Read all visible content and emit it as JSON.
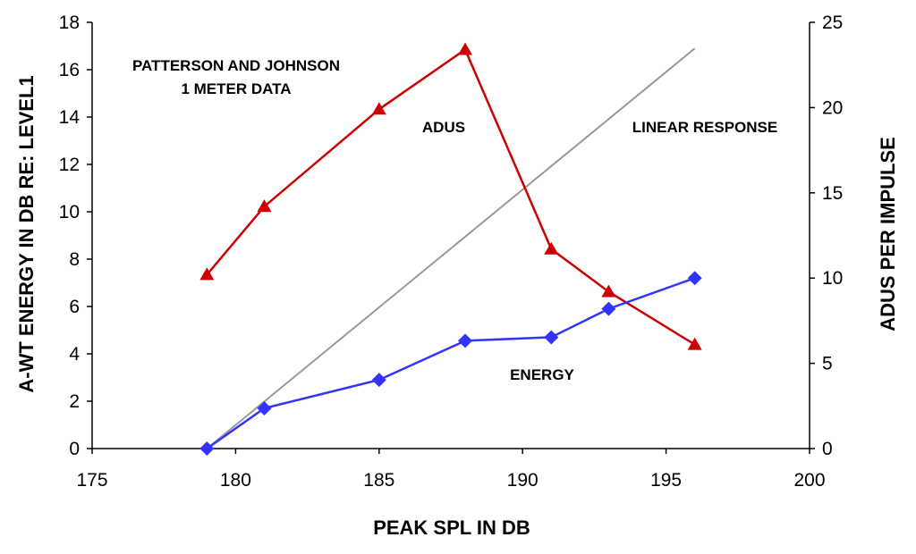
{
  "chart_data": {
    "type": "line",
    "xlabel": "PEAK SPL IN DB",
    "ylabel_left": "A-WT ENERGY IN DB RE: LEVEL1",
    "ylabel_right": "ADUS PER IMPULSE",
    "xlim": [
      175,
      200
    ],
    "ylim_left": [
      0,
      18
    ],
    "ylim_right": [
      0,
      25
    ],
    "x_ticks": [
      "175",
      "180",
      "185",
      "190",
      "195",
      "200"
    ],
    "y_left_ticks": [
      "0",
      "2",
      "4",
      "6",
      "8",
      "10",
      "12",
      "14",
      "16",
      "18"
    ],
    "y_right_ticks": [
      "0",
      "5",
      "10",
      "15",
      "20",
      "25"
    ],
    "grid": false,
    "series": [
      {
        "key": "adus",
        "axis": "right",
        "color": "#cc0000",
        "marker": "triangle",
        "x": [
          179,
          181,
          185,
          188,
          191,
          193,
          196
        ],
        "y": [
          10.2,
          14.2,
          19.9,
          23.4,
          11.7,
          9.2,
          6.1
        ]
      },
      {
        "key": "energy",
        "axis": "left",
        "color": "#3333ff",
        "marker": "diamond",
        "x": [
          179,
          181,
          185,
          188,
          191,
          193,
          196
        ],
        "y": [
          0,
          1.7,
          2.9,
          4.55,
          4.7,
          5.9,
          7.2
        ]
      },
      {
        "key": "linear",
        "axis": "left",
        "color": "#999999",
        "marker": "none",
        "x": [
          179,
          196
        ],
        "y": [
          0,
          16.9
        ]
      }
    ],
    "annotations": {
      "source_line1": "PATTERSON AND JOHNSON",
      "source_line2": "1 METER DATA",
      "adus": "ADUS",
      "linear": "LINEAR RESPONSE",
      "energy": "ENERGY"
    }
  }
}
